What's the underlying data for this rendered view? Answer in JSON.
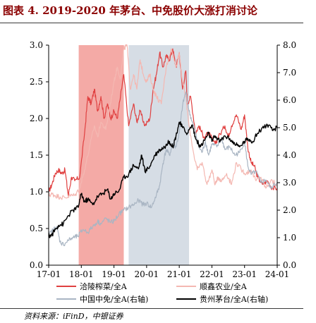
{
  "title": "图表 4. 2019-2020 年茅台、中免股价大涨打消讨论",
  "source": "资料来源：iFinD，中银证券",
  "chart_data": {
    "type": "line",
    "left_axis": {
      "ylim": [
        0,
        3.0
      ],
      "ticks": [
        "0.0",
        "0.5",
        "1.0",
        "1.5",
        "2.0",
        "2.5",
        "3.0"
      ]
    },
    "right_axis": {
      "ylim": [
        0,
        8.0
      ],
      "ticks": [
        "0.0",
        "1.0",
        "2.0",
        "3.0",
        "4.0",
        "5.0",
        "6.0",
        "7.0",
        "8.0"
      ]
    },
    "x_axis": {
      "xlim": [
        "2017-01",
        "2024-01"
      ],
      "ticks": [
        {
          "label": "17-01",
          "t": 2017.0
        },
        {
          "label": "18-01",
          "t": 2018.0
        },
        {
          "label": "19-01",
          "t": 2019.0
        },
        {
          "label": "20-01",
          "t": 2020.0
        },
        {
          "label": "21-01",
          "t": 2021.0
        },
        {
          "label": "22-01",
          "t": 2022.0
        },
        {
          "label": "23-01",
          "t": 2023.0
        },
        {
          "label": "24-01",
          "t": 2024.0
        }
      ]
    },
    "shaded_regions": [
      {
        "from": 2017.92,
        "to": 2019.3,
        "color": "#f4aaa6"
      },
      {
        "from": 2019.45,
        "to": 2021.3,
        "color": "#d6dde5"
      }
    ],
    "series": [
      {
        "name": "洽陵榨菜/全A",
        "axis": "left",
        "color": "#e04040",
        "width": 1.2,
        "points": [
          [
            2017.0,
            1.0
          ],
          [
            2017.1,
            1.1
          ],
          [
            2017.2,
            1.25
          ],
          [
            2017.3,
            1.3
          ],
          [
            2017.4,
            1.25
          ],
          [
            2017.5,
            1.3
          ],
          [
            2017.6,
            0.95
          ],
          [
            2017.7,
            1.2
          ],
          [
            2017.8,
            1.15
          ],
          [
            2017.95,
            1.2
          ],
          [
            2018.1,
            1.8
          ],
          [
            2018.2,
            2.3
          ],
          [
            2018.3,
            2.2
          ],
          [
            2018.4,
            2.4
          ],
          [
            2018.5,
            2.1
          ],
          [
            2018.6,
            2.3
          ],
          [
            2018.7,
            2.0
          ],
          [
            2018.8,
            2.2
          ],
          [
            2018.9,
            2.0
          ],
          [
            2019.0,
            2.1
          ],
          [
            2019.1,
            2.0
          ],
          [
            2019.2,
            2.3
          ],
          [
            2019.3,
            2.6
          ],
          [
            2019.45,
            1.9
          ],
          [
            2019.6,
            2.2
          ],
          [
            2019.7,
            1.95
          ],
          [
            2019.8,
            2.1
          ],
          [
            2019.95,
            1.9
          ],
          [
            2020.1,
            2.0
          ],
          [
            2020.2,
            2.4
          ],
          [
            2020.3,
            2.6
          ],
          [
            2020.4,
            2.9
          ],
          [
            2020.5,
            2.7
          ],
          [
            2020.6,
            2.85
          ],
          [
            2020.7,
            2.8
          ],
          [
            2020.8,
            2.95
          ],
          [
            2020.9,
            2.7
          ],
          [
            2021.0,
            2.9
          ],
          [
            2021.1,
            2.4
          ],
          [
            2021.2,
            2.65
          ],
          [
            2021.25,
            2.2
          ],
          [
            2021.35,
            2.3
          ],
          [
            2021.5,
            1.8
          ],
          [
            2021.6,
            1.9
          ],
          [
            2021.75,
            1.75
          ],
          [
            2021.9,
            1.8
          ],
          [
            2022.1,
            1.65
          ],
          [
            2022.2,
            1.75
          ],
          [
            2022.4,
            1.9
          ],
          [
            2022.5,
            1.75
          ],
          [
            2022.6,
            1.9
          ],
          [
            2022.75,
            2.05
          ],
          [
            2022.9,
            1.85
          ],
          [
            2023.0,
            2.05
          ],
          [
            2023.1,
            1.6
          ],
          [
            2023.2,
            1.4
          ],
          [
            2023.3,
            1.35
          ],
          [
            2023.4,
            1.2
          ],
          [
            2023.55,
            1.1
          ],
          [
            2023.7,
            1.15
          ],
          [
            2023.85,
            1.05
          ],
          [
            2024.0,
            1.05
          ]
        ]
      },
      {
        "name": "顺鑫农业/全A",
        "axis": "left",
        "color": "#f4b8b2",
        "width": 1.2,
        "points": [
          [
            2017.0,
            0.95
          ],
          [
            2017.1,
            0.97
          ],
          [
            2017.2,
            0.95
          ],
          [
            2017.35,
            0.93
          ],
          [
            2017.5,
            0.92
          ],
          [
            2017.65,
            0.95
          ],
          [
            2017.8,
            0.95
          ],
          [
            2017.95,
            1.05
          ],
          [
            2018.1,
            1.3
          ],
          [
            2018.25,
            1.6
          ],
          [
            2018.4,
            1.9
          ],
          [
            2018.5,
            1.75
          ],
          [
            2018.6,
            1.95
          ],
          [
            2018.75,
            1.85
          ],
          [
            2018.85,
            2.1
          ],
          [
            2019.0,
            2.5
          ],
          [
            2019.1,
            2.7
          ],
          [
            2019.2,
            2.55
          ],
          [
            2019.3,
            2.95
          ],
          [
            2019.4,
            3.0
          ],
          [
            2019.5,
            2.4
          ],
          [
            2019.6,
            2.6
          ],
          [
            2019.7,
            2.4
          ],
          [
            2019.8,
            2.8
          ],
          [
            2019.9,
            2.6
          ],
          [
            2020.0,
            2.5
          ],
          [
            2020.1,
            2.6
          ],
          [
            2020.2,
            2.4
          ],
          [
            2020.3,
            2.3
          ],
          [
            2020.45,
            2.2
          ],
          [
            2020.6,
            2.7
          ],
          [
            2020.75,
            2.95
          ],
          [
            2020.9,
            2.7
          ],
          [
            2021.0,
            2.9
          ],
          [
            2021.1,
            2.5
          ],
          [
            2021.2,
            2.3
          ],
          [
            2021.3,
            1.9
          ],
          [
            2021.45,
            1.5
          ],
          [
            2021.55,
            1.3
          ],
          [
            2021.7,
            1.4
          ],
          [
            2021.85,
            1.1
          ],
          [
            2022.0,
            1.3
          ],
          [
            2022.1,
            1.1
          ],
          [
            2022.2,
            1.2
          ],
          [
            2022.3,
            1.15
          ],
          [
            2022.45,
            1.25
          ],
          [
            2022.6,
            1.1
          ],
          [
            2022.75,
            1.4
          ],
          [
            2022.9,
            1.3
          ],
          [
            2023.05,
            1.25
          ],
          [
            2023.2,
            1.3
          ],
          [
            2023.35,
            1.15
          ],
          [
            2023.5,
            1.2
          ],
          [
            2023.65,
            1.05
          ],
          [
            2023.8,
            1.15
          ],
          [
            2024.0,
            1.1
          ]
        ]
      },
      {
        "name": "中国中免/全A(右轴)",
        "axis": "right",
        "color": "#a9b5c3",
        "width": 1.2,
        "points": [
          [
            2017.0,
            1.1
          ],
          [
            2017.15,
            1.3
          ],
          [
            2017.25,
            1.4
          ],
          [
            2017.35,
            0.85
          ],
          [
            2017.45,
            0.75
          ],
          [
            2017.6,
            0.9
          ],
          [
            2017.75,
            1.0
          ],
          [
            2017.9,
            1.05
          ],
          [
            2018.05,
            1.3
          ],
          [
            2018.2,
            1.2
          ],
          [
            2018.35,
            1.4
          ],
          [
            2018.5,
            1.6
          ],
          [
            2018.6,
            1.5
          ],
          [
            2018.75,
            1.7
          ],
          [
            2018.9,
            1.55
          ],
          [
            2019.0,
            1.6
          ],
          [
            2019.15,
            1.85
          ],
          [
            2019.3,
            2.0
          ],
          [
            2019.45,
            2.1
          ],
          [
            2019.6,
            2.2
          ],
          [
            2019.75,
            2.35
          ],
          [
            2019.9,
            2.2
          ],
          [
            2020.0,
            2.25
          ],
          [
            2020.15,
            2.1
          ],
          [
            2020.3,
            2.55
          ],
          [
            2020.4,
            2.9
          ],
          [
            2020.5,
            3.7
          ],
          [
            2020.6,
            4.2
          ],
          [
            2020.7,
            4.0
          ],
          [
            2020.8,
            4.4
          ],
          [
            2020.9,
            4.3
          ],
          [
            2021.0,
            4.8
          ],
          [
            2021.1,
            5.8
          ],
          [
            2021.2,
            6.3
          ],
          [
            2021.3,
            5.6
          ],
          [
            2021.4,
            5.2
          ],
          [
            2021.5,
            4.8
          ],
          [
            2021.6,
            4.3
          ],
          [
            2021.7,
            4.1
          ],
          [
            2021.8,
            4.5
          ],
          [
            2021.9,
            4.0
          ],
          [
            2022.0,
            4.4
          ],
          [
            2022.15,
            4.3
          ],
          [
            2022.3,
            4.6
          ],
          [
            2022.4,
            4.2
          ],
          [
            2022.55,
            4.3
          ],
          [
            2022.7,
            4.0
          ],
          [
            2022.85,
            4.1
          ],
          [
            2023.0,
            4.5
          ],
          [
            2023.1,
            3.6
          ],
          [
            2023.2,
            3.3
          ],
          [
            2023.35,
            3.4
          ],
          [
            2023.5,
            3.0
          ],
          [
            2023.65,
            3.1
          ],
          [
            2023.8,
            2.8
          ],
          [
            2024.0,
            3.0
          ]
        ]
      },
      {
        "name": "贵州茅台/全A(右轴)",
        "axis": "right",
        "color": "#000000",
        "width": 1.4,
        "points": [
          [
            2017.0,
            1.05
          ],
          [
            2017.1,
            1.1
          ],
          [
            2017.2,
            1.3
          ],
          [
            2017.3,
            1.45
          ],
          [
            2017.45,
            1.5
          ],
          [
            2017.6,
            1.8
          ],
          [
            2017.75,
            2.0
          ],
          [
            2017.9,
            2.1
          ],
          [
            2018.0,
            2.6
          ],
          [
            2018.1,
            2.3
          ],
          [
            2018.2,
            2.4
          ],
          [
            2018.35,
            2.2
          ],
          [
            2018.5,
            2.5
          ],
          [
            2018.65,
            2.6
          ],
          [
            2018.8,
            2.75
          ],
          [
            2018.9,
            2.4
          ],
          [
            2019.0,
            2.6
          ],
          [
            2019.15,
            2.7
          ],
          [
            2019.3,
            3.2
          ],
          [
            2019.45,
            3.3
          ],
          [
            2019.6,
            3.65
          ],
          [
            2019.75,
            3.5
          ],
          [
            2019.85,
            4.0
          ],
          [
            2019.95,
            3.4
          ],
          [
            2020.1,
            3.6
          ],
          [
            2020.25,
            4.0
          ],
          [
            2020.4,
            4.2
          ],
          [
            2020.55,
            4.3
          ],
          [
            2020.7,
            4.5
          ],
          [
            2020.8,
            4.3
          ],
          [
            2020.9,
            4.7
          ],
          [
            2021.0,
            5.2
          ],
          [
            2021.1,
            5.0
          ],
          [
            2021.25,
            4.8
          ],
          [
            2021.4,
            5.1
          ],
          [
            2021.5,
            4.6
          ],
          [
            2021.65,
            4.3
          ],
          [
            2021.8,
            4.6
          ],
          [
            2021.9,
            4.8
          ],
          [
            2022.0,
            4.5
          ],
          [
            2022.1,
            4.7
          ],
          [
            2022.25,
            4.5
          ],
          [
            2022.4,
            4.7
          ],
          [
            2022.55,
            4.6
          ],
          [
            2022.7,
            4.4
          ],
          [
            2022.85,
            4.3
          ],
          [
            2023.0,
            4.5
          ],
          [
            2023.1,
            4.6
          ],
          [
            2023.25,
            4.5
          ],
          [
            2023.4,
            4.8
          ],
          [
            2023.55,
            5.0
          ],
          [
            2023.7,
            5.1
          ],
          [
            2023.85,
            4.9
          ],
          [
            2024.0,
            5.0
          ]
        ]
      }
    ],
    "legend": {
      "placement": "bottom",
      "entries": [
        "洽陵榨菜/全A",
        "顺鑫农业/全A",
        "中国中免/全A(右轴)",
        "贵州茅台/全A(右轴)"
      ]
    }
  }
}
